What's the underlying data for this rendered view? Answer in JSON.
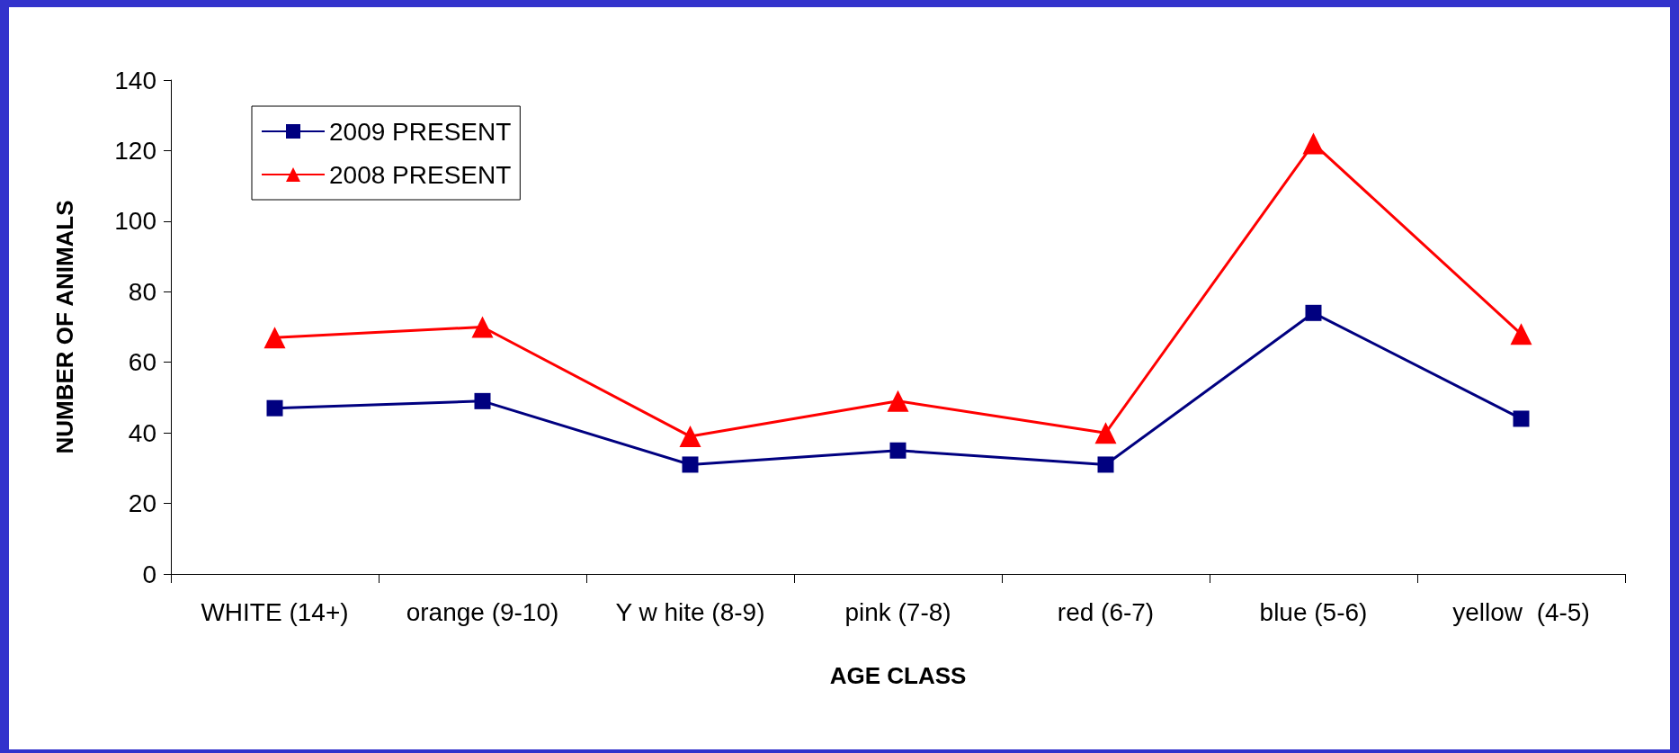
{
  "chart_data": {
    "type": "line",
    "xlabel": "AGE CLASS",
    "ylabel": "NUMBER OF ANIMALS",
    "categories": [
      "WHITE (14+)",
      "orange (9-10)",
      "Y w hite (8-9)",
      "pink (7-8)",
      "red (6-7)",
      "blue (5-6)",
      "yellow  (4-5)"
    ],
    "series": [
      {
        "name": "2009 PRESENT",
        "color": "#000080",
        "marker": "square",
        "values": [
          47,
          49,
          31,
          35,
          31,
          74,
          44
        ]
      },
      {
        "name": "2008 PRESENT",
        "color": "#ff0000",
        "marker": "triangle",
        "values": [
          67,
          70,
          39,
          49,
          40,
          122,
          68
        ]
      }
    ],
    "ylim": [
      0,
      140
    ],
    "yticks": [
      0,
      20,
      40,
      60,
      80,
      100,
      120,
      140
    ],
    "grid": false,
    "legend": "top left"
  }
}
